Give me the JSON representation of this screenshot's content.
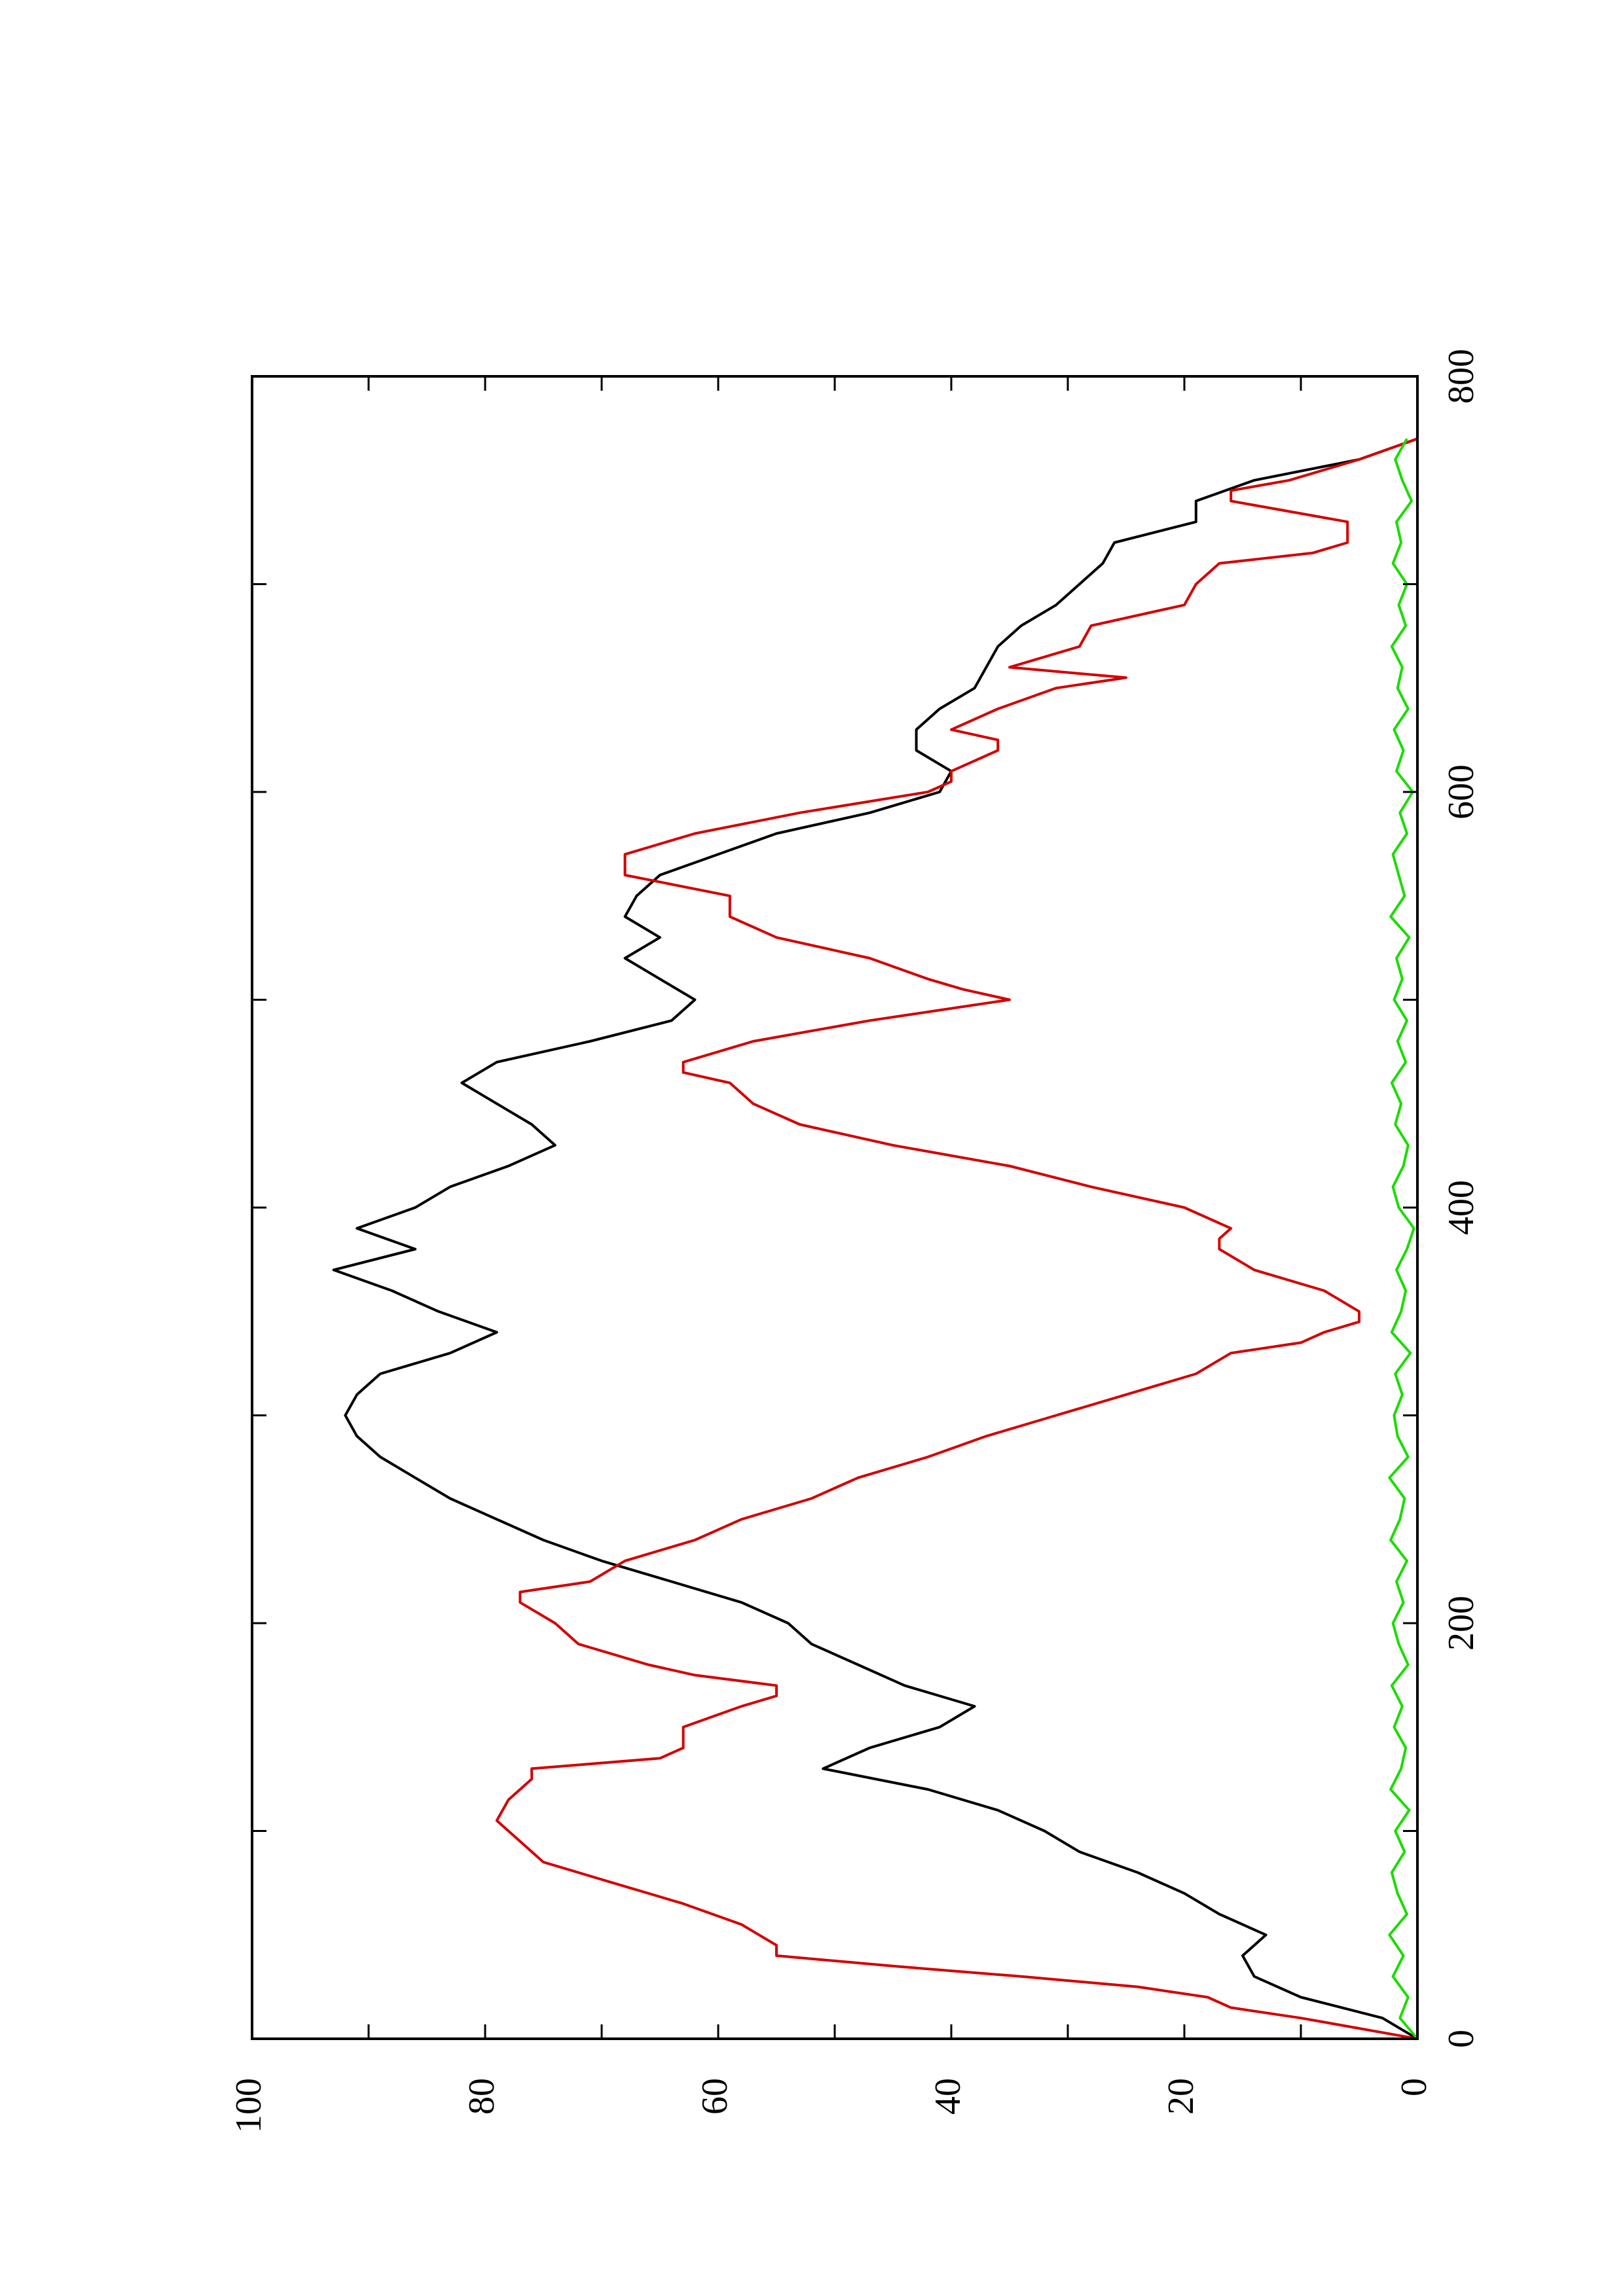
{
  "chart_data": {
    "type": "line",
    "orientation": "rotated-90-ccw",
    "title": "",
    "xlabel": "",
    "ylabel": "",
    "grid": false,
    "legend": "none",
    "xlim": [
      0,
      800
    ],
    "ylim": [
      0,
      100
    ],
    "x_ticks": [
      0,
      200,
      400,
      600,
      800
    ],
    "x_minor_ticks": [
      100,
      300,
      500,
      700
    ],
    "y_ticks": [
      0,
      20,
      40,
      60,
      80,
      100
    ],
    "y_minor_ticks": [
      10,
      30,
      50,
      70,
      90
    ],
    "series": [
      {
        "color": "#000000",
        "x": [
          0,
          10,
          20,
          30,
          40,
          50,
          60,
          70,
          80,
          90,
          100,
          110,
          120,
          130,
          140,
          150,
          160,
          170,
          180,
          190,
          200,
          210,
          220,
          230,
          240,
          250,
          260,
          270,
          280,
          290,
          300,
          310,
          320,
          330,
          340,
          350,
          360,
          370,
          380,
          390,
          400,
          410,
          420,
          430,
          440,
          450,
          460,
          470,
          480,
          490,
          500,
          510,
          520,
          530,
          540,
          550,
          560,
          570,
          580,
          590,
          600,
          610,
          620,
          630,
          640,
          650,
          660,
          670,
          680,
          690,
          700,
          710,
          720,
          730,
          740,
          750,
          760,
          770
        ],
        "values": [
          0,
          3,
          10,
          14,
          15,
          13,
          17,
          20,
          24,
          29,
          32,
          36,
          42,
          51,
          47,
          41,
          38,
          44,
          48,
          52,
          54,
          58,
          64,
          70,
          75,
          79,
          83,
          86,
          89,
          91,
          92,
          91,
          89,
          83,
          79,
          84,
          88,
          93,
          86,
          91,
          86,
          83,
          78,
          74,
          76,
          79,
          82,
          79,
          71,
          64,
          62,
          65,
          68,
          65,
          68,
          67,
          65,
          60,
          55,
          47,
          41,
          40,
          43,
          43,
          41,
          38,
          37,
          36,
          34,
          31,
          29,
          27,
          26,
          19,
          19,
          14,
          5,
          0
        ]
      },
      {
        "color": "#d40000",
        "x": [
          0,
          5,
          10,
          15,
          20,
          25,
          30,
          35,
          40,
          45,
          55,
          65,
          75,
          85,
          95,
          105,
          115,
          125,
          130,
          135,
          140,
          150,
          160,
          165,
          170,
          175,
          180,
          190,
          200,
          210,
          215,
          220,
          230,
          240,
          250,
          260,
          270,
          280,
          290,
          300,
          310,
          320,
          330,
          335,
          340,
          345,
          350,
          360,
          370,
          380,
          385,
          390,
          400,
          410,
          420,
          430,
          440,
          450,
          460,
          465,
          470,
          480,
          490,
          495,
          500,
          505,
          510,
          520,
          530,
          540,
          545,
          550,
          560,
          570,
          580,
          590,
          600,
          605,
          610,
          620,
          625,
          630,
          640,
          650,
          655,
          660,
          670,
          680,
          690,
          700,
          710,
          715,
          720,
          730,
          740,
          745,
          750,
          760,
          770
        ],
        "values": [
          0,
          5,
          10,
          16,
          18,
          24,
          34,
          45,
          55,
          55,
          58,
          63,
          69,
          75,
          77,
          79,
          78,
          76,
          76,
          65,
          63,
          63,
          58,
          55,
          55,
          62,
          66,
          72,
          74,
          77,
          77,
          71,
          68,
          62,
          58,
          52,
          48,
          42,
          37,
          31,
          25,
          19,
          16,
          10,
          8,
          5,
          5,
          8,
          14,
          17,
          17,
          16,
          20,
          28,
          35,
          45,
          53,
          57,
          59,
          63,
          63,
          57,
          47,
          41,
          35,
          39,
          42,
          47,
          55,
          59,
          59,
          59,
          68,
          68,
          62,
          53,
          42,
          40,
          40,
          36,
          36,
          40,
          36,
          31,
          25,
          35,
          29,
          28,
          20,
          19,
          17,
          9,
          6,
          6,
          16,
          16,
          11,
          5,
          0
        ]
      },
      {
        "color": "#1bdc00",
        "x": [
          0,
          10,
          20,
          30,
          40,
          50,
          60,
          70,
          80,
          90,
          100,
          110,
          120,
          130,
          140,
          150,
          160,
          170,
          180,
          190,
          200,
          210,
          220,
          230,
          240,
          250,
          260,
          270,
          280,
          290,
          300,
          310,
          320,
          330,
          340,
          350,
          360,
          370,
          380,
          390,
          400,
          410,
          420,
          430,
          440,
          450,
          460,
          470,
          480,
          490,
          500,
          510,
          520,
          530,
          540,
          550,
          560,
          570,
          580,
          590,
          600,
          610,
          620,
          630,
          640,
          650,
          660,
          670,
          680,
          690,
          700,
          710,
          720,
          730,
          740,
          750,
          760,
          770
        ],
        "values": [
          0,
          1.5,
          0.8,
          2.1,
          1.2,
          2.4,
          0.9,
          1.7,
          2.2,
          1.1,
          1.9,
          0.7,
          2.3,
          1.4,
          1.0,
          2.0,
          1.3,
          2.2,
          0.8,
          1.6,
          2.1,
          1.2,
          1.8,
          0.9,
          2.3,
          1.5,
          1.1,
          2.4,
          0.8,
          1.7,
          2.0,
          1.3,
          1.9,
          0.6,
          2.2,
          1.4,
          1.0,
          1.8,
          0.9,
          0.3,
          1.6,
          2.1,
          1.2,
          0.8,
          1.9,
          1.4,
          2.2,
          1.0,
          1.7,
          0.9,
          2.0,
          1.3,
          1.8,
          0.7,
          2.3,
          1.1,
          1.6,
          2.1,
          0.9,
          1.5,
          0.4,
          1.8,
          1.2,
          2.0,
          0.8,
          1.7,
          1.3,
          2.2,
          1.0,
          1.6,
          0.9,
          2.1,
          1.4,
          1.8,
          0.5,
          1.3,
          1.9,
          0.9
        ]
      }
    ]
  }
}
